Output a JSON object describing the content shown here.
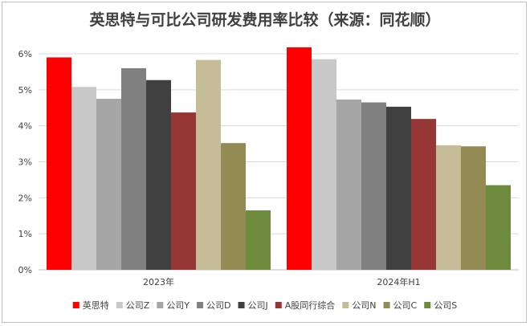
{
  "chart_data": {
    "type": "bar",
    "title": "英思特与可比公司研发费用率比较（来源：同花顺）",
    "xlabel": "",
    "ylabel": "",
    "categories": [
      "2023年",
      "2024年H1"
    ],
    "ylim": [
      0,
      6
    ],
    "yticks": [
      "0%",
      "1%",
      "2%",
      "3%",
      "4%",
      "5%",
      "6%"
    ],
    "grid": true,
    "legend_position": "bottom",
    "series": [
      {
        "name": "英思特",
        "color": "#ff0000",
        "values": [
          5.9,
          6.18
        ]
      },
      {
        "name": "公司Z",
        "color": "#c8c8c8",
        "values": [
          5.08,
          5.85
        ]
      },
      {
        "name": "公司Y",
        "color": "#a6a6a6",
        "values": [
          4.75,
          4.73
        ]
      },
      {
        "name": "公司D",
        "color": "#808080",
        "values": [
          5.6,
          4.65
        ]
      },
      {
        "name": "公司J",
        "color": "#404040",
        "values": [
          5.27,
          4.53
        ]
      },
      {
        "name": "A股同行综合",
        "color": "#953735",
        "values": [
          4.37,
          4.19
        ]
      },
      {
        "name": "公司N",
        "color": "#c4bd97",
        "values": [
          5.83,
          3.46
        ]
      },
      {
        "name": "公司C",
        "color": "#948a54",
        "values": [
          3.52,
          3.43
        ]
      },
      {
        "name": "公司S",
        "color": "#6e8b3d",
        "values": [
          1.65,
          2.35
        ]
      }
    ]
  }
}
